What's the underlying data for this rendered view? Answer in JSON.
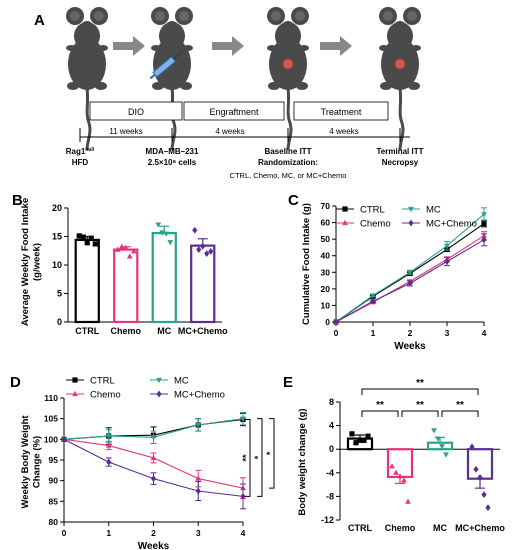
{
  "panel_labels": {
    "a": "A",
    "b": "B",
    "c": "C",
    "d": "D",
    "e": "E"
  },
  "timeline": {
    "phases": [
      "DIO",
      "Engraftment",
      "Treatment"
    ],
    "durations": [
      "11 weeks",
      "4 weeks",
      "4 weeks"
    ],
    "events": [
      {
        "line1": "Rag1",
        "sup": "null",
        "line2": "HFD",
        "line3": ""
      },
      {
        "line1": "MDA–MB–231",
        "sup": "",
        "line2": "2.5×10⁶ cells",
        "line3": ""
      },
      {
        "line1": "Baseline ITT",
        "sup": "",
        "line2": "Randomization:",
        "line3": "CTRL, Chemo, MC,  or MC+Chemo"
      },
      {
        "line1": "Terminal ITT",
        "sup": "",
        "line2": "Necropsy",
        "line3": ""
      }
    ]
  },
  "colors": {
    "ctrl": "#000000",
    "chemo": "#e8327c",
    "mc": "#2ba08c",
    "mcchemo": "#5b2c91"
  },
  "chart_data": [
    {
      "id": "B",
      "type": "bar",
      "ylabel": "Average Weekly Food Intake (g/week)",
      "ylim": [
        0,
        20
      ],
      "yticks": [
        "0",
        "5",
        "10",
        "15",
        "20"
      ],
      "categories": [
        "CTRL",
        "Chemo",
        "MC",
        "MC+Chemo"
      ],
      "values": [
        14.4,
        12.7,
        15.6,
        13.4
      ],
      "errors": [
        0.6,
        0.5,
        1.2,
        1.2
      ],
      "points": [
        [
          15.1,
          14.9,
          13.9,
          14.7,
          13.7
        ],
        [
          12.7,
          13.2,
          13.0,
          11.5,
          12.4
        ],
        [
          17.1,
          15.7,
          15.5,
          14.0
        ],
        [
          16.1,
          12.7,
          13.3,
          12.0,
          12.4
        ]
      ]
    },
    {
      "id": "C",
      "type": "line",
      "xlabel": "Weeks",
      "ylabel": "Cumulative Food Intake (g)",
      "xlim": [
        0,
        4
      ],
      "ylim": [
        0,
        70
      ],
      "xticks": [
        "0",
        "1",
        "2",
        "3",
        "4"
      ],
      "yticks": [
        "0",
        "10",
        "20",
        "30",
        "40",
        "50",
        "60",
        "70"
      ],
      "legend": [
        "CTRL",
        "MC",
        "Chemo",
        "MC+Chemo"
      ],
      "x": [
        0,
        1,
        2,
        3,
        4
      ],
      "series": [
        {
          "name": "CTRL",
          "values": [
            0,
            15.5,
            29.3,
            43.8,
            59.4
          ],
          "errors": [
            0,
            0.6,
            0.8,
            1.2,
            2.0
          ]
        },
        {
          "name": "Chemo",
          "values": [
            0,
            12.0,
            24.5,
            37.8,
            52.0
          ],
          "errors": [
            0,
            0.5,
            0.9,
            1.5,
            2.5
          ]
        },
        {
          "name": "MC",
          "values": [
            0,
            16.0,
            30.0,
            46.0,
            65.0
          ],
          "errors": [
            0,
            0.8,
            1.2,
            2.6,
            3.9
          ]
        },
        {
          "name": "MC+Chemo",
          "values": [
            0,
            12.5,
            23.3,
            36.5,
            49.6
          ],
          "errors": [
            0,
            0.8,
            1.5,
            2.5,
            3.6
          ]
        }
      ]
    },
    {
      "id": "D",
      "type": "line",
      "xlabel": "Weeks",
      "ylabel": "Weekly Body Weight Change (%)",
      "xlim": [
        0,
        4
      ],
      "ylim": [
        80,
        110
      ],
      "xticks": [
        "0",
        "1",
        "2",
        "3",
        "4"
      ],
      "yticks": [
        "80",
        "85",
        "90",
        "95",
        "100",
        "105",
        "110"
      ],
      "legend": [
        "CTRL",
        "MC",
        "Chemo",
        "MC+Chemo"
      ],
      "x": [
        0,
        1,
        2,
        3,
        4
      ],
      "series": [
        {
          "name": "CTRL",
          "values": [
            100,
            100.8,
            101.0,
            103.5,
            104.8
          ],
          "errors": [
            0,
            2.0,
            2.0,
            1.5,
            1.5
          ]
        },
        {
          "name": "Chemo",
          "values": [
            100,
            98.5,
            95.5,
            90.5,
            88.2
          ],
          "errors": [
            0,
            1.0,
            1.2,
            2.0,
            2.5
          ]
        },
        {
          "name": "MC",
          "values": [
            100,
            100.8,
            100.5,
            103.5,
            105.0
          ],
          "errors": [
            0,
            1.5,
            1.5,
            1.5,
            1.5
          ]
        },
        {
          "name": "MC+Chemo",
          "values": [
            100,
            94.5,
            90.5,
            87.5,
            86.2
          ],
          "errors": [
            0,
            1.0,
            1.4,
            2.3,
            3.0
          ]
        }
      ],
      "significance": [
        "**",
        "*",
        "*"
      ]
    },
    {
      "id": "E",
      "type": "bar",
      "ylabel": "Body weight change (g)",
      "ylim": [
        -12,
        8
      ],
      "yticks": [
        "-12",
        "-8",
        "-4",
        "0",
        "4",
        "8"
      ],
      "categories": [
        "CTRL",
        "Chemo",
        "MC",
        "MC+Chemo"
      ],
      "values": [
        1.8,
        -4.7,
        1.1,
        -5.0
      ],
      "errors": [
        0.6,
        1.1,
        0.9,
        1.6
      ],
      "points": [
        [
          2.6,
          1.1,
          1.5,
          1.5,
          2.2
        ],
        [
          -2.9,
          -4.0,
          -4.6,
          -5.3,
          -8.9
        ],
        [
          3.2,
          1.8,
          0.5,
          -0.9
        ],
        [
          0.4,
          -3.4,
          -4.8,
          -7.7,
          -9.9
        ]
      ],
      "significance": [
        "**",
        "**",
        "**",
        "**"
      ]
    }
  ]
}
